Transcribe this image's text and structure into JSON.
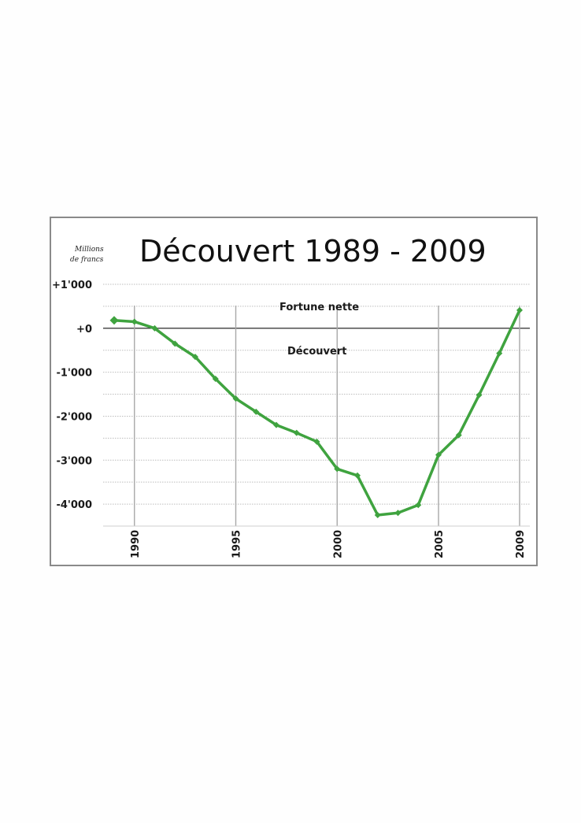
{
  "chart_data": {
    "type": "line",
    "title": "Découvert  1989 - 2009",
    "ylabel_lines": [
      "Millions",
      "de francs"
    ],
    "annotations": {
      "above_zero": "Fortune nette",
      "below_zero": "Découvert"
    },
    "x": [
      1989,
      1990,
      1991,
      1992,
      1993,
      1994,
      1995,
      1996,
      1997,
      1998,
      1999,
      2000,
      2001,
      2002,
      2003,
      2004,
      2005,
      2006,
      2007,
      2008,
      2009
    ],
    "series": [
      {
        "values": [
          180,
          150,
          0,
          -350,
          -650,
          -1150,
          -1600,
          -1900,
          -2200,
          -2380,
          -2580,
          -3200,
          -3350,
          -4250,
          -4200,
          -4020,
          -2880,
          -2430,
          -1520,
          -570,
          410
        ]
      }
    ],
    "xticks": [
      1990,
      1995,
      2000,
      2005,
      2009
    ],
    "xtick_labels": [
      "1990",
      "1995",
      "2000",
      "2005",
      "2009"
    ],
    "yticks": [
      1000,
      0,
      -1000,
      -2000,
      -3000,
      -4000
    ],
    "ytick_labels": [
      "+1'000",
      "+0",
      "-1'000",
      "-2'000",
      "-3'000",
      "-4'000"
    ],
    "ylim": [
      -4500,
      1000
    ],
    "xlim": [
      1989,
      2009.5
    ],
    "grid": true,
    "colors": {
      "line": "#3fa33f",
      "zero_line": "#111111",
      "grid_minor": "#bdbdbd",
      "grid_vertical": "#a8a8a8"
    }
  }
}
